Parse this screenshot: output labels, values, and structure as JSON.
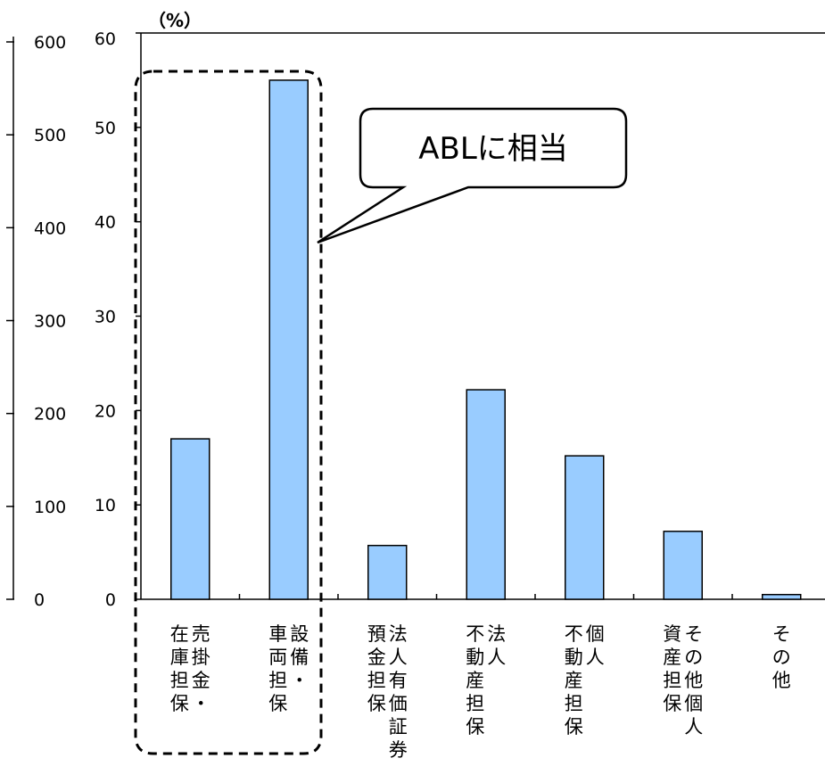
{
  "chart_data": {
    "type": "bar",
    "unit_label": "（%）",
    "left_axis": {
      "ticks": [
        "600",
        "500",
        "400",
        "300",
        "200",
        "100",
        "0"
      ],
      "values": [
        600,
        500,
        400,
        300,
        200,
        100,
        0
      ]
    },
    "y_axis": {
      "ticks": [
        "60",
        "50",
        "40",
        "30",
        "20",
        "10",
        "0"
      ],
      "values": [
        60,
        50,
        40,
        30,
        20,
        10,
        0
      ]
    },
    "ylim": [
      0,
      60
    ],
    "categories": [
      "売掛金・在庫担保",
      "設備・車両担保",
      "法人有価証券預金担保",
      "法人不動産担保",
      "個人不動産担保",
      "その他個人資産担保",
      "その他"
    ],
    "category_label_columns": [
      [
        "売掛金・",
        "在庫担保"
      ],
      [
        "設備・",
        "車両担保"
      ],
      [
        "法人有価証券",
        "預金担保"
      ],
      [
        "法人",
        "不動産担保"
      ],
      [
        "個人",
        "不動産担保"
      ],
      [
        "その他個人",
        "資産担保"
      ],
      [
        "その他"
      ]
    ],
    "values": [
      17,
      55,
      5.7,
      22.2,
      15.2,
      7.2,
      0.5
    ],
    "bar_color": "#99ccff",
    "callout": {
      "text": "ABLに相当"
    }
  }
}
